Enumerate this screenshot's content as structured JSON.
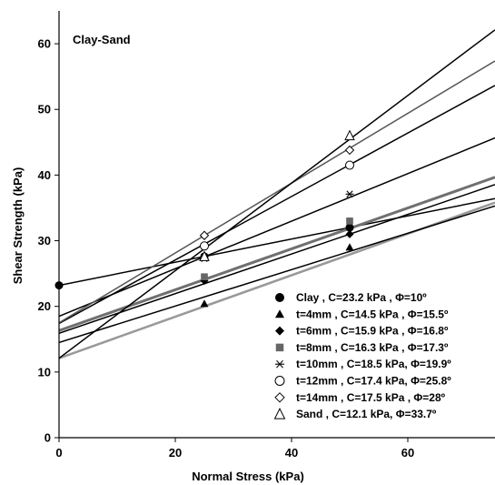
{
  "chart_data": {
    "type": "scatter",
    "title": "",
    "annotation": "Clay-Sand",
    "xlabel": "Normal Stress (kPa)",
    "ylabel": "Shear Strength (kPa)",
    "xlim": [
      0,
      75
    ],
    "ylim": [
      0,
      65
    ],
    "xticks": [
      "0",
      "20",
      "40",
      "60"
    ],
    "yticks": [
      "0",
      "10",
      "20",
      "30",
      "40",
      "50",
      "60"
    ],
    "grid": false,
    "legend_position": "bottom-right",
    "series": [
      {
        "name": "Clay",
        "legend_label": "Clay ,     C=23.2 kPa ,  Φ=10º",
        "marker": "circle-filled",
        "line_color": "#000000",
        "c": 23.2,
        "phi": 10,
        "points": [
          {
            "x": 0,
            "y": 23.2
          },
          {
            "x": 25,
            "y": 27.6
          },
          {
            "x": 50,
            "y": 32.0
          }
        ]
      },
      {
        "name": "t=4mm",
        "legend_label": "t=4mm , C=14.5 kPa ,  Φ=15.5º",
        "marker": "triangle-filled",
        "line_color": "#000000",
        "c": 14.5,
        "phi": 15.5,
        "points": [
          {
            "x": 25,
            "y": 20.4
          },
          {
            "x": 50,
            "y": 29.0
          }
        ]
      },
      {
        "name": "t=6mm",
        "legend_label": "t=6mm , C=15.9 kPa ,  Φ=16.8º",
        "marker": "diamond-filled",
        "line_color": "#000000",
        "c": 15.9,
        "phi": 16.8,
        "points": [
          {
            "x": 25,
            "y": 23.9
          },
          {
            "x": 50,
            "y": 31.0
          }
        ]
      },
      {
        "name": "t=8mm",
        "legend_label": "t=8mm , C=16.3 kPa ,  Φ=17.3º",
        "marker": "square-filled",
        "line_color": "#707070",
        "c": 16.3,
        "phi": 17.3,
        "points": [
          {
            "x": 25,
            "y": 24.5
          },
          {
            "x": 50,
            "y": 33.0
          }
        ]
      },
      {
        "name": "t=10mm",
        "legend_label": "t=10mm , C=18.5 kPa, Φ=19.9º",
        "marker": "asterisk",
        "line_color": "#000000",
        "c": 18.5,
        "phi": 19.9,
        "points": [
          {
            "x": 25,
            "y": 27.3
          },
          {
            "x": 50,
            "y": 37.1
          }
        ]
      },
      {
        "name": "t=12mm",
        "legend_label": "t=12mm , C=17.4 kPa, Φ=25.8º",
        "marker": "circle-open",
        "line_color": "#000000",
        "c": 17.4,
        "phi": 25.8,
        "points": [
          {
            "x": 25,
            "y": 29.2
          },
          {
            "x": 50,
            "y": 41.5
          }
        ]
      },
      {
        "name": "t=14mm",
        "legend_label": "t=14mm , C=17.5 kPa , Φ=28º",
        "marker": "diamond-open",
        "line_color": "#555555",
        "c": 17.5,
        "phi": 28,
        "points": [
          {
            "x": 25,
            "y": 30.8
          },
          {
            "x": 50,
            "y": 43.8
          }
        ]
      },
      {
        "name": "Sand",
        "legend_label": "Sand ,      C=12.1 kPa,  Φ=33.7º",
        "marker": "triangle-open",
        "line_color": "#000000",
        "c": 12.1,
        "phi": 33.7,
        "points": [
          {
            "x": 25,
            "y": 27.6
          },
          {
            "x": 50,
            "y": 46.0
          }
        ]
      }
    ],
    "extra_gray_line": {
      "color": "#999999",
      "c": 12.1,
      "slope": 0.316,
      "points": [
        {
          "x": 25,
          "y": 20.4
        },
        {
          "x": 50,
          "y": 28.5
        }
      ]
    }
  }
}
